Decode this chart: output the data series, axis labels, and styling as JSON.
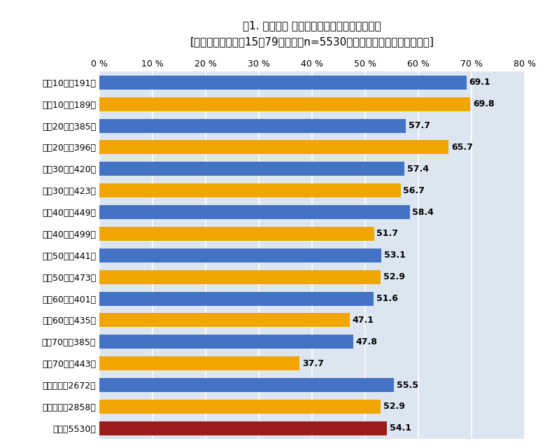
{
  "title_line1": "図1. 性年代別 「倍速視聴をすることがある」",
  "title_line2": "[調査対象：全国・15〜79歳・男女n=5530（動画視聴をする方が対象）]",
  "categories": [
    "男性10代（191）",
    "女性10代（189）",
    "男性20代（385）",
    "女性20代（396）",
    "男性30代（420）",
    "女性30代（423）",
    "男性40代（449）",
    "女性40代（499）",
    "男性50代（441）",
    "女性50代（473）",
    "男性60代（401）",
    "女性60代（435）",
    "男性70代（385）",
    "女性70代（443）",
    "男性全体（2672）",
    "女性全体（2858）",
    "全体（5530）"
  ],
  "values": [
    69.1,
    69.8,
    57.7,
    65.7,
    57.4,
    56.7,
    58.4,
    51.7,
    53.1,
    52.9,
    51.6,
    47.1,
    47.8,
    37.7,
    55.5,
    52.9,
    54.1
  ],
  "bar_colors": [
    "#4472C4",
    "#F0A500",
    "#4472C4",
    "#F0A500",
    "#4472C4",
    "#F0A500",
    "#4472C4",
    "#F0A500",
    "#4472C4",
    "#F0A500",
    "#4472C4",
    "#F0A500",
    "#4472C4",
    "#F0A500",
    "#4472C4",
    "#F0A500",
    "#9B1C1C"
  ],
  "xlim": [
    0,
    80
  ],
  "xticks": [
    0,
    10,
    20,
    30,
    40,
    50,
    60,
    70,
    80
  ],
  "background_color": "#ffffff",
  "plot_bg_color": "#dce6f1",
  "bar_height": 0.65,
  "title_fontsize": 11,
  "subtitle_fontsize": 10,
  "tick_fontsize": 9,
  "label_fontsize": 9,
  "value_fontsize": 9
}
